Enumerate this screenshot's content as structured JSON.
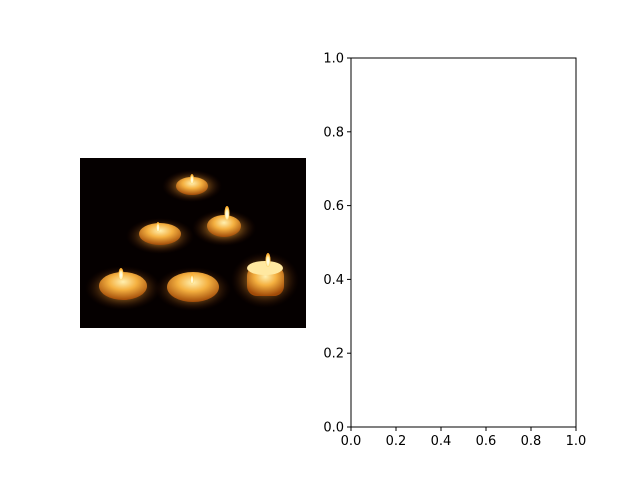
{
  "figure": {
    "background": "#ffffff"
  },
  "image_panel": {
    "content": "photo of six lit candles on a dark background",
    "icon": "candles-photo",
    "colors": {
      "background": "#050000",
      "wax": "#e8a030",
      "glow": "#ffd070",
      "flame": "#fff6d0"
    }
  },
  "chart_data": [
    {
      "type": "image",
      "content": "candles photo"
    },
    {
      "type": "scatter",
      "title": "",
      "xlabel": "",
      "ylabel": "",
      "series": [],
      "xlim": [
        0.0,
        1.0
      ],
      "ylim": [
        0.0,
        1.0
      ],
      "xticks": [
        0.0,
        0.2,
        0.4,
        0.6,
        0.8,
        1.0
      ],
      "yticks": [
        0.0,
        0.2,
        0.4,
        0.6,
        0.8,
        1.0
      ],
      "xtick_labels": [
        "0.0",
        "0.2",
        "0.4",
        "0.6",
        "0.8",
        "1.0"
      ],
      "ytick_labels": [
        "0.0",
        "0.2",
        "0.4",
        "0.6",
        "0.8",
        "1.0"
      ],
      "grid": false,
      "legend": "none"
    }
  ]
}
